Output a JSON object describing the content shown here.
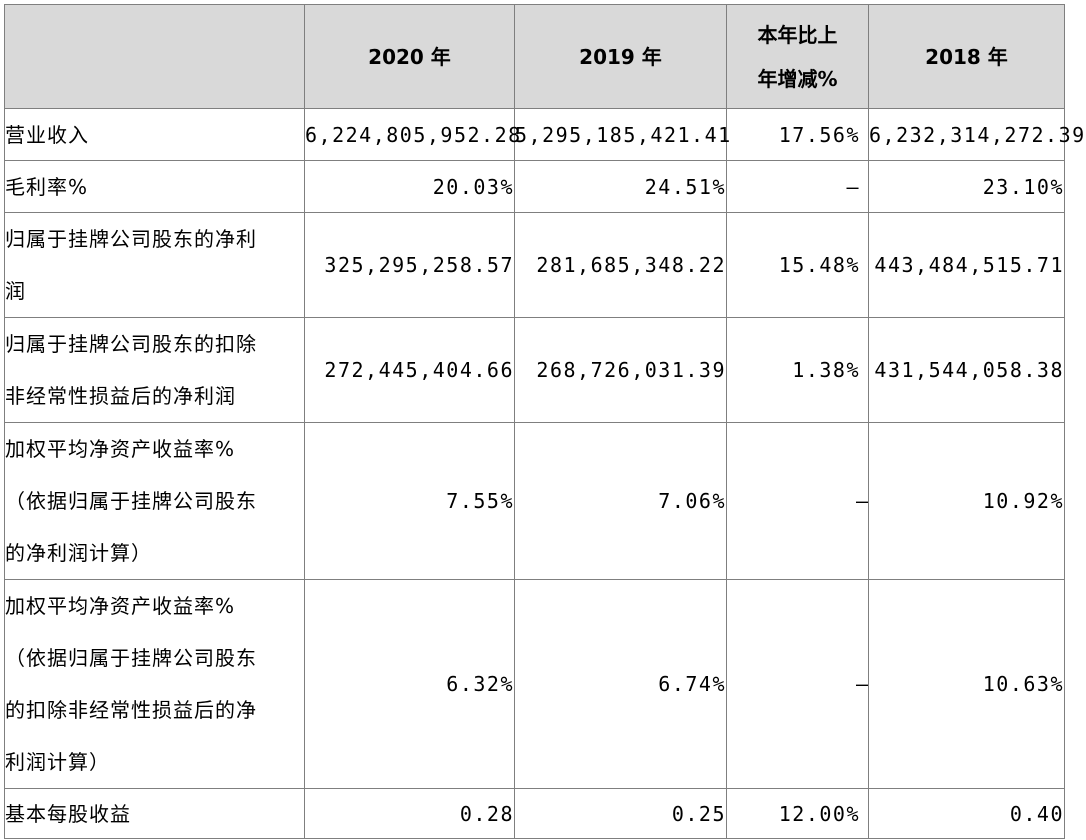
{
  "header": {
    "col_2020": "2020 年",
    "col_2019": "2019 年",
    "col_change_line1": "本年比上",
    "col_change_line2": "年增减%",
    "col_2018": "2018 年"
  },
  "rows": [
    {
      "label_lines": [
        "营业收入"
      ],
      "y2020": "6,224,805,952.28",
      "y2019": "5,295,185,421.41",
      "change": "17.56%",
      "y2018": "6,232,314,272.39"
    },
    {
      "label_lines": [
        "毛利率%"
      ],
      "y2020": "20.03%",
      "y2019": "24.51%",
      "change": "–",
      "y2018": "23.10%"
    },
    {
      "label_lines": [
        "归属于挂牌公司股东的净利",
        "润"
      ],
      "y2020": "325,295,258.57",
      "y2019": "281,685,348.22",
      "change": "15.48%",
      "y2018": "443,484,515.71"
    },
    {
      "label_lines": [
        "归属于挂牌公司股东的扣除",
        "非经常性损益后的净利润"
      ],
      "y2020": "272,445,404.66",
      "y2019": "268,726,031.39",
      "change": "1.38%",
      "y2018": "431,544,058.38"
    },
    {
      "label_lines": [
        "加权平均净资产收益率%",
        "（依据归属于挂牌公司股东",
        "的净利润计算）"
      ],
      "y2020": "7.55%",
      "y2019": "7.06%",
      "change": "–",
      "y2018": "10.92%"
    },
    {
      "label_lines": [
        "加权平均净资产收益率%",
        "（依据归属于挂牌公司股东",
        "的扣除非经常性损益后的净",
        "利润计算）"
      ],
      "y2020": "6.32%",
      "y2019": "6.74%",
      "change": "–",
      "y2018": "10.63%"
    },
    {
      "label_lines": [
        "基本每股收益"
      ],
      "y2020": "0.28",
      "y2019": "0.25",
      "change": "12.00%",
      "y2018": "0.40"
    }
  ]
}
